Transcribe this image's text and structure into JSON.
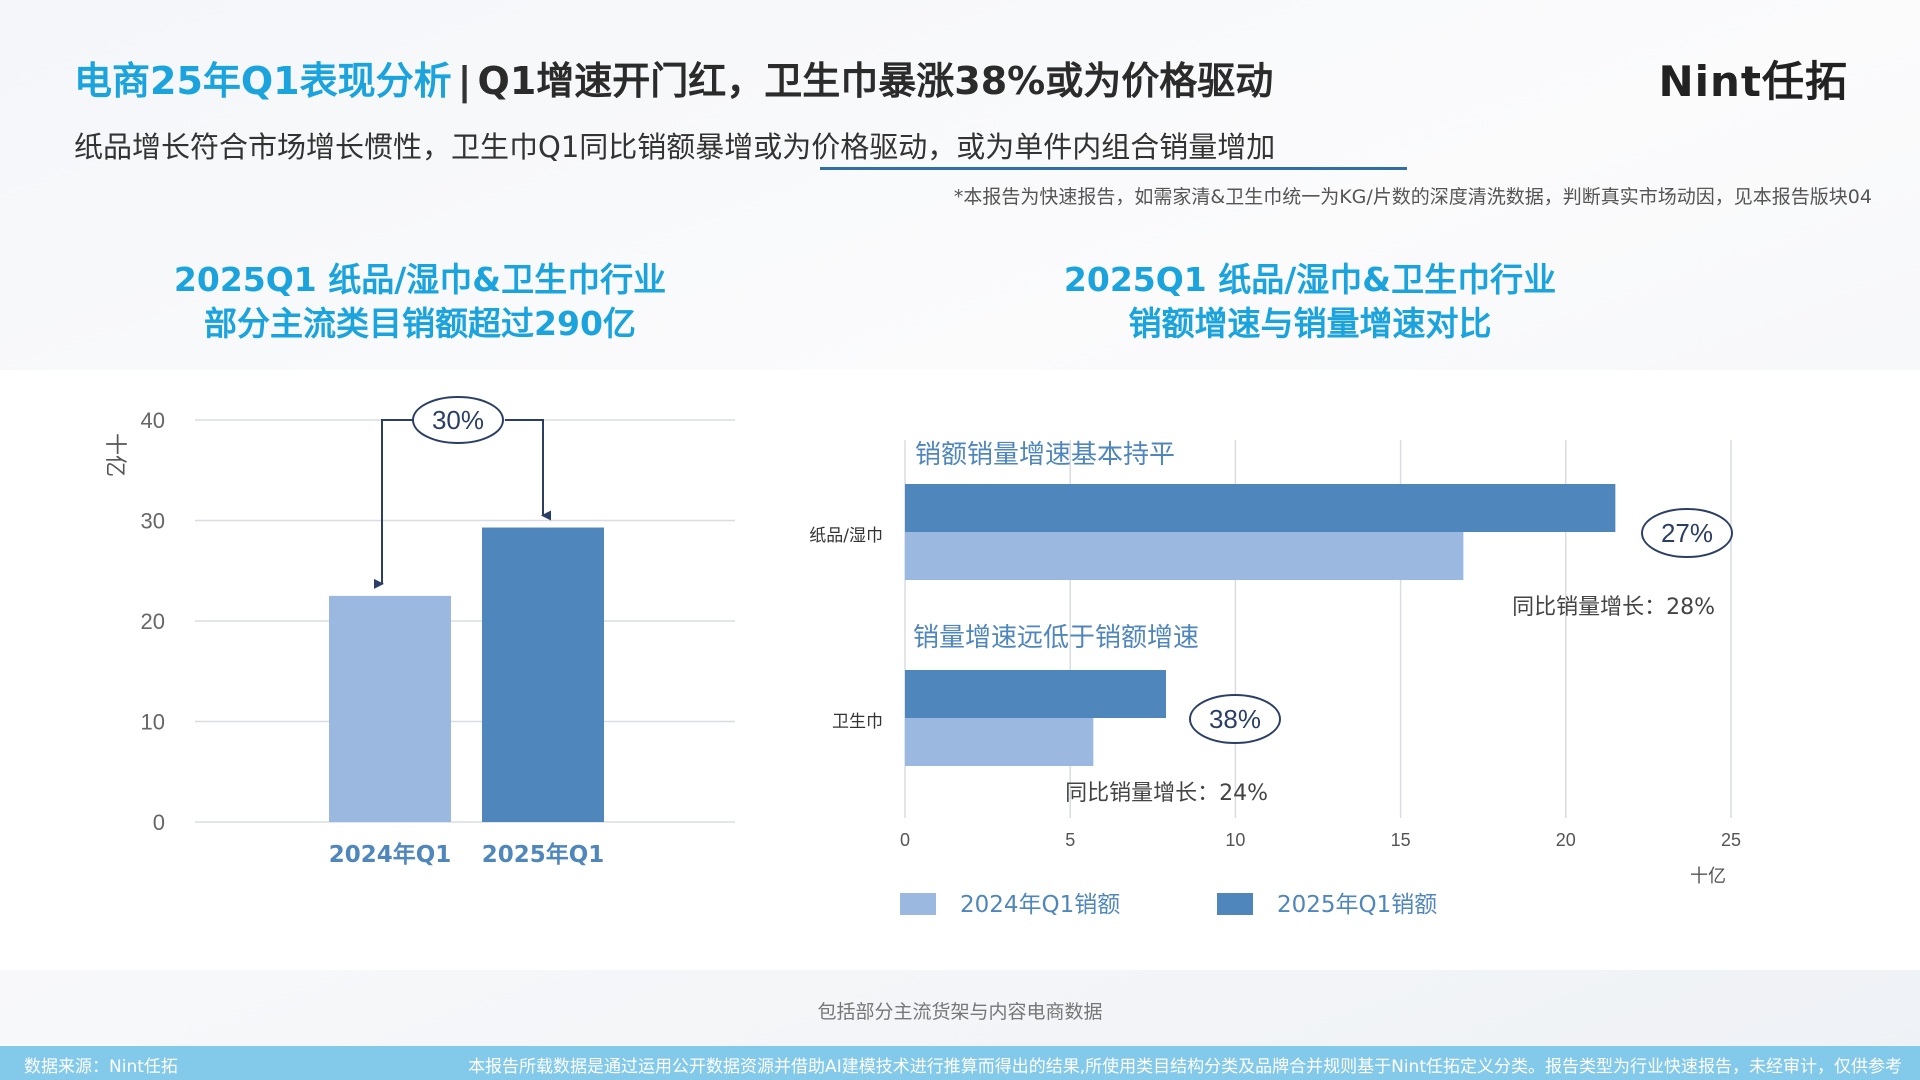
{
  "header": {
    "title_highlight": "电商25年Q1表现分析",
    "title_sep": "|",
    "title_rest": "Q1增速开门红，卫生巾暴涨38%或为价格驱动",
    "logo": "Nint任拓",
    "subtitle": "纸品增长符合市场增长惯性，卫生巾Q1同比销额暴增或为价格驱动，或为单件内组合销量增加",
    "note": "*本报告为快速报告，如需家清&卫生巾统一为KG/片数的深度清洗数据，判断真实市场动因，见本报告版块04"
  },
  "chart_titles": {
    "left_line1": "2025Q1 纸品/湿巾&卫生巾行业",
    "left_line2": "部分主流类目销额超过290亿",
    "right_line1": "2025Q1 纸品/湿巾&卫生巾行业",
    "right_line2": "销额增速与销量增速对比"
  },
  "chart_data": [
    {
      "type": "bar",
      "categories": [
        "2024年Q1",
        "2025年Q1"
      ],
      "values": [
        22.5,
        29.3
      ],
      "ylabel": "十亿",
      "ylim": [
        0,
        40
      ],
      "yticks": [
        "0",
        "10",
        "20",
        "30",
        "40"
      ],
      "colors": [
        "#9ab8e0",
        "#4f86bc"
      ],
      "annotation": "30%",
      "grid": true
    },
    {
      "type": "bar",
      "orientation": "horizontal",
      "categories": [
        "纸品/湿巾",
        "卫生巾"
      ],
      "series": [
        {
          "name": "2025年Q1销额",
          "values": [
            21.5,
            7.9
          ],
          "color": "#4f86bc"
        },
        {
          "name": "2024年Q1销额",
          "values": [
            16.9,
            5.7
          ],
          "color": "#9ab8e0"
        }
      ],
      "xlim": [
        0,
        25
      ],
      "xticks": [
        "0",
        "5",
        "10",
        "15",
        "20",
        "25"
      ],
      "xlabel": "十亿",
      "legend_placement": "bottom",
      "legend": [
        {
          "label": "2024年Q1销额",
          "color": "#9ab8e0"
        },
        {
          "label": "2025年Q1销额",
          "color": "#4f86bc"
        }
      ],
      "growth_labels": [
        "27%",
        "38%"
      ],
      "volume_notes": [
        "同比销量增长：28%",
        "同比销量增长：24%"
      ],
      "group_headers": [
        "销额销量增速基本持平",
        "销量增速远低于销额增速"
      ],
      "grid": true
    }
  ],
  "footer": {
    "note": "包括部分主流货架与内容电商数据",
    "source": "数据来源：Nint任拓",
    "disclaimer": "本报告所载数据是通过运用公开数据资源并借助AI建模技术进行推算而得出的结果,所使用类目结构分类及品牌合并规则基于Nint任拓定义分类。报告类型为行业快速报告，未经审计，仅供参考"
  }
}
